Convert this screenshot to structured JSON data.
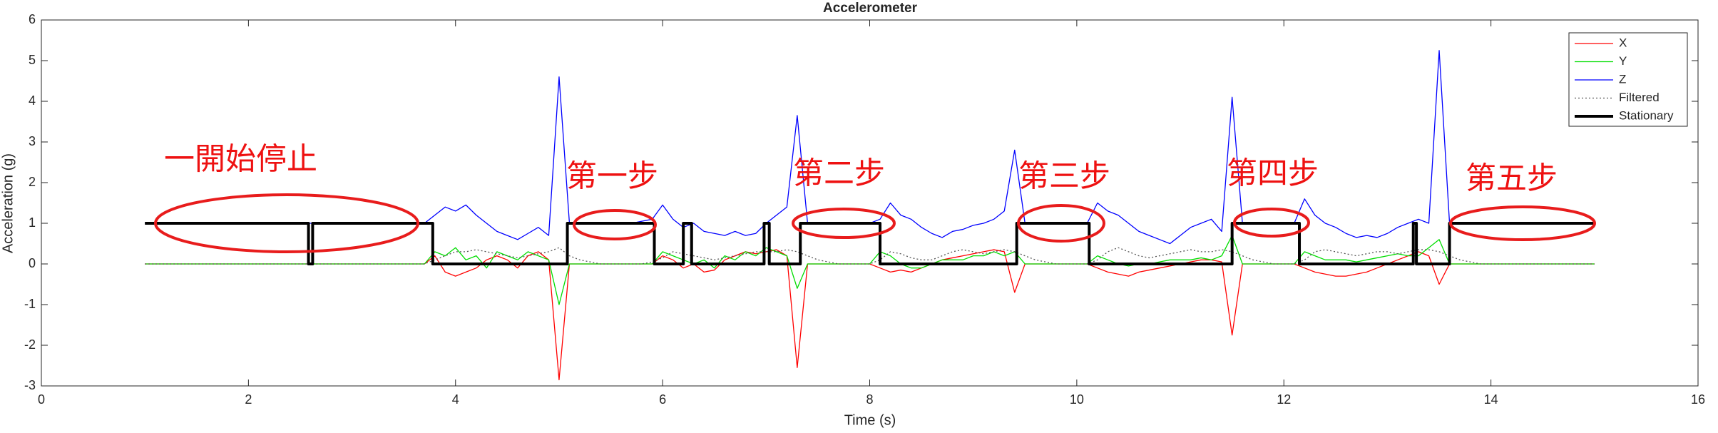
{
  "chart_data": {
    "type": "line",
    "title": "Accelerometer",
    "xlabel": "Time (s)",
    "ylabel": "Acceleration (g)",
    "xlim": [
      0,
      16
    ],
    "ylim": [
      -3,
      6
    ],
    "xticks": [
      0,
      2,
      4,
      6,
      8,
      10,
      12,
      14,
      16
    ],
    "yticks": [
      -3,
      -2,
      -1,
      0,
      1,
      2,
      3,
      4,
      5,
      6
    ],
    "legend": "upper right",
    "x": [
      1.0,
      1.1,
      1.2,
      1.3,
      1.4,
      1.5,
      1.6,
      1.7,
      1.8,
      1.9,
      2.0,
      2.1,
      2.2,
      2.3,
      2.4,
      2.5,
      2.6,
      2.7,
      2.8,
      2.9,
      3.0,
      3.1,
      3.2,
      3.3,
      3.4,
      3.5,
      3.6,
      3.7,
      3.8,
      3.9,
      4.0,
      4.1,
      4.2,
      4.3,
      4.4,
      4.5,
      4.6,
      4.7,
      4.8,
      4.9,
      5.0,
      5.1,
      5.2,
      5.3,
      5.4,
      5.5,
      5.6,
      5.7,
      5.8,
      5.9,
      6.0,
      6.1,
      6.2,
      6.3,
      6.4,
      6.5,
      6.6,
      6.7,
      6.8,
      6.9,
      7.0,
      7.1,
      7.2,
      7.3,
      7.4,
      7.5,
      7.6,
      7.7,
      7.8,
      7.9,
      8.0,
      8.1,
      8.2,
      8.3,
      8.4,
      8.5,
      8.6,
      8.7,
      8.8,
      8.9,
      9.0,
      9.1,
      9.2,
      9.3,
      9.4,
      9.5,
      9.6,
      9.7,
      9.8,
      9.9,
      10.0,
      10.1,
      10.2,
      10.3,
      10.4,
      10.5,
      10.6,
      10.7,
      10.8,
      10.9,
      11.0,
      11.1,
      11.2,
      11.3,
      11.4,
      11.5,
      11.6,
      11.7,
      11.8,
      11.9,
      12.0,
      12.1,
      12.2,
      12.3,
      12.4,
      12.5,
      12.6,
      12.7,
      12.8,
      12.9,
      13.0,
      13.1,
      13.2,
      13.3,
      13.4,
      13.5,
      13.6,
      13.7,
      13.8,
      13.9,
      14.0,
      14.1,
      14.2,
      14.3,
      14.4,
      14.5,
      14.6,
      14.7,
      14.8,
      14.9,
      15.0
    ],
    "series": [
      {
        "name": "X",
        "color": "#ff0000",
        "linestyle": "solid",
        "values": [
          0,
          0,
          0,
          0,
          0,
          0,
          0,
          0,
          0,
          0,
          0,
          0,
          0,
          0,
          0,
          0,
          0,
          0,
          0,
          0,
          0,
          0,
          0,
          0,
          0,
          0,
          0,
          0,
          0.2,
          -0.2,
          -0.3,
          -0.2,
          -0.1,
          0.1,
          0.2,
          0.1,
          -0.1,
          0.2,
          0.3,
          0.1,
          -2.85,
          0,
          0,
          0,
          0,
          0,
          0,
          0,
          0,
          0,
          0.2,
          0.1,
          -0.1,
          0,
          -0.2,
          -0.15,
          0.1,
          0.2,
          0.3,
          0.25,
          0.3,
          0.35,
          0.2,
          -2.55,
          0,
          0,
          0,
          0,
          0,
          0,
          0,
          -0.1,
          -0.2,
          -0.15,
          -0.2,
          -0.1,
          0,
          0.1,
          0.15,
          0.2,
          0.25,
          0.3,
          0.35,
          0.3,
          -0.7,
          0,
          0,
          0,
          0,
          0,
          0,
          0,
          -0.1,
          -0.2,
          -0.25,
          -0.3,
          -0.2,
          -0.15,
          -0.1,
          -0.05,
          0,
          0.05,
          0.1,
          0.1,
          0.05,
          -1.75,
          0,
          0,
          0,
          0,
          0,
          0,
          -0.1,
          -0.2,
          -0.25,
          -0.3,
          -0.3,
          -0.25,
          -0.2,
          -0.1,
          0,
          0.1,
          0.2,
          0.3,
          0.2,
          -0.5,
          0,
          0,
          0,
          0,
          0,
          0,
          0,
          0,
          0,
          0,
          0,
          0,
          0,
          0,
          0
        ]
      },
      {
        "name": "Y",
        "color": "#00dd00",
        "linestyle": "solid",
        "values": [
          0,
          0,
          0,
          0,
          0,
          0,
          0,
          0,
          0,
          0,
          0,
          0,
          0,
          0,
          0,
          0,
          0,
          0,
          0,
          0,
          0,
          0,
          0,
          0,
          0,
          0,
          0,
          0,
          0.3,
          0.2,
          0.4,
          0.1,
          0.2,
          -0.1,
          0.3,
          0.2,
          0.1,
          0.3,
          0.2,
          0.1,
          -1.0,
          0,
          0,
          0,
          0,
          0,
          0,
          0,
          0,
          0,
          0.3,
          0.2,
          0.1,
          0,
          0.1,
          -0.1,
          0.2,
          0.1,
          0.3,
          0.2,
          0.4,
          0.3,
          0.2,
          -0.6,
          0,
          0,
          0,
          0,
          0,
          0,
          0,
          0.3,
          0.2,
          0,
          -0.1,
          -0.1,
          0,
          0.1,
          0.1,
          0.1,
          0.2,
          0.2,
          0.3,
          0.2,
          0.3,
          0,
          0,
          0,
          0,
          0,
          0,
          0,
          0.2,
          0.1,
          0,
          -0.05,
          0,
          0,
          0.05,
          0.1,
          0.1,
          0.1,
          0.15,
          0.1,
          0.2,
          0.7,
          0,
          0,
          0,
          0,
          0,
          0,
          0.3,
          0.2,
          0.1,
          0.1,
          0.1,
          0.05,
          0.1,
          0.15,
          0.2,
          0.25,
          0.2,
          0.2,
          0.4,
          0.6,
          0,
          0,
          0,
          0,
          0,
          0,
          0,
          0,
          0,
          0,
          0,
          0,
          0,
          0,
          0
        ]
      },
      {
        "name": "Z",
        "color": "#0000ff",
        "linestyle": "solid",
        "values": [
          1,
          1,
          1,
          1,
          1,
          1,
          1,
          1,
          1,
          1,
          1,
          1,
          1,
          1,
          1,
          1,
          1,
          1,
          1,
          1,
          1,
          1,
          1,
          1,
          1,
          1,
          1,
          1,
          1.2,
          1.4,
          1.3,
          1.45,
          1.2,
          1.0,
          0.8,
          0.7,
          0.6,
          0.75,
          0.9,
          0.7,
          4.6,
          1.0,
          1.0,
          1.0,
          1.0,
          1.0,
          1.0,
          1.0,
          1.05,
          1.1,
          1.45,
          1.1,
          0.9,
          1.0,
          0.8,
          0.75,
          0.7,
          0.8,
          0.7,
          0.75,
          1.0,
          1.2,
          1.4,
          3.65,
          1.0,
          1.0,
          1.0,
          1.0,
          1.0,
          1.0,
          1.0,
          1.1,
          1.5,
          1.2,
          1.1,
          0.9,
          0.75,
          0.65,
          0.8,
          0.85,
          0.95,
          1.0,
          1.1,
          1.3,
          2.8,
          1.0,
          1.0,
          1.0,
          1.0,
          1.0,
          1.0,
          1.0,
          1.5,
          1.3,
          1.2,
          1.0,
          0.8,
          0.7,
          0.6,
          0.5,
          0.7,
          0.9,
          1.0,
          1.1,
          0.8,
          4.1,
          1.0,
          1.0,
          1.0,
          1.0,
          1.0,
          1.0,
          1.6,
          1.2,
          1.0,
          0.9,
          0.75,
          0.65,
          0.7,
          0.65,
          0.75,
          0.9,
          1.0,
          1.1,
          1.0,
          5.25,
          1.0,
          1.0,
          1.0,
          1.0,
          1.0,
          1.0,
          1.0,
          1.0,
          1.0,
          1.0,
          1.0,
          1.0,
          1.0,
          1.0,
          1.0
        ]
      },
      {
        "name": "Filtered",
        "color": "#555555",
        "linestyle": "dotted",
        "values": [
          0,
          0,
          0,
          0,
          0,
          0,
          0,
          0,
          0,
          0,
          0,
          0,
          0,
          0,
          0,
          0,
          0,
          0,
          0,
          0,
          0,
          0,
          0,
          0,
          0,
          0,
          0,
          0,
          0.1,
          0.2,
          0.3,
          0.3,
          0.35,
          0.3,
          0.25,
          0.2,
          0.15,
          0.2,
          0.25,
          0.3,
          0.4,
          0.2,
          0.1,
          0.05,
          0,
          0,
          0,
          0,
          0,
          0.05,
          0.15,
          0.3,
          0.25,
          0.2,
          0.15,
          0.1,
          0.15,
          0.2,
          0.25,
          0.3,
          0.3,
          0.3,
          0.35,
          0.3,
          0.2,
          0.1,
          0.05,
          0,
          0,
          0,
          0,
          0.1,
          0.3,
          0.25,
          0.15,
          0.1,
          0.1,
          0.2,
          0.3,
          0.35,
          0.3,
          0.25,
          0.3,
          0.35,
          0.3,
          0.2,
          0.1,
          0.05,
          0,
          0,
          0,
          0,
          0.1,
          0.3,
          0.4,
          0.3,
          0.2,
          0.15,
          0.2,
          0.25,
          0.3,
          0.35,
          0.3,
          0.3,
          0.35,
          0.3,
          0.2,
          0.1,
          0.05,
          0,
          0,
          0,
          0.1,
          0.3,
          0.35,
          0.3,
          0.25,
          0.2,
          0.25,
          0.3,
          0.3,
          0.25,
          0.3,
          0.35,
          0.35,
          0.3,
          0.2,
          0.1,
          0.05,
          0,
          0,
          0,
          0,
          0,
          0,
          0,
          0,
          0,
          0,
          0,
          0
        ]
      },
      {
        "name": "Stationary",
        "color": "#000000",
        "linestyle": "thick",
        "x": [
          1,
          2.58,
          2.58,
          2.62,
          2.62,
          3.78,
          3.78,
          5.08,
          5.08,
          5.92,
          5.92,
          6.2,
          6.2,
          6.28,
          6.28,
          6.98,
          6.98,
          7.03,
          7.03,
          7.33,
          7.33,
          8.1,
          8.1,
          9.42,
          9.42,
          10.12,
          10.12,
          11.5,
          11.5,
          12.15,
          12.15,
          13.25,
          13.25,
          13.28,
          13.28,
          13.6,
          13.6,
          15
        ],
        "values": [
          1,
          1,
          0,
          0,
          1,
          1,
          0,
          0,
          1,
          1,
          0,
          0,
          1,
          1,
          0,
          0,
          1,
          1,
          0,
          0,
          1,
          1,
          0,
          0,
          1,
          1,
          0,
          0,
          1,
          1,
          0,
          0,
          1,
          1,
          0,
          0,
          1,
          1
        ]
      }
    ],
    "annotations": [
      "一開始停止",
      "第一步",
      "第二步",
      "第三步",
      "第四步",
      "第五步"
    ]
  }
}
